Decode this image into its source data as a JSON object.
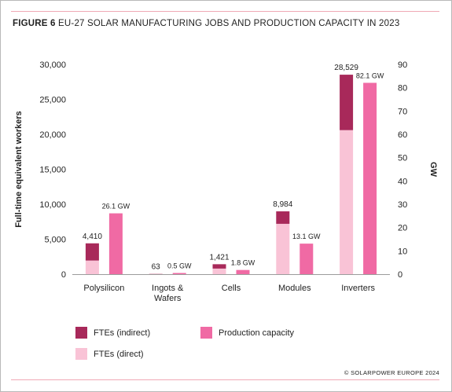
{
  "figure": {
    "label": "FIGURE 6",
    "title": "EU-27 SOLAR MANUFACTURING JOBS AND PRODUCTION CAPACITY IN 2023",
    "copyright": "© SOLARPOWER EUROPE 2024"
  },
  "colors": {
    "fte_indirect": "#a8295a",
    "fte_direct": "#f9c3d6",
    "capacity": "#f06aa4",
    "axis": "#222222",
    "rule": "#f0a9b5"
  },
  "chart_data": {
    "type": "bar",
    "categories": [
      "Polysilicon",
      "Ingots &\nWafers",
      "Cells",
      "Modules",
      "Inverters"
    ],
    "left_axis": {
      "label": "Full-time equivalent workers",
      "range": [
        0,
        30000
      ],
      "ticks": [
        "0",
        "5,000",
        "10,000",
        "15,000",
        "20,000",
        "25,000",
        "30,000"
      ]
    },
    "right_axis": {
      "label": "GW",
      "range": [
        0,
        90
      ],
      "ticks": [
        "0",
        "10",
        "20",
        "30",
        "40",
        "50",
        "60",
        "70",
        "80",
        "90"
      ]
    },
    "series": [
      {
        "name": "FTEs (direct)",
        "axis": "left",
        "stack": "fte",
        "values": [
          1950,
          40,
          800,
          7200,
          20600
        ]
      },
      {
        "name": "FTEs (indirect)",
        "axis": "left",
        "stack": "fte",
        "values": [
          2460,
          23,
          621,
          1784,
          7929
        ]
      },
      {
        "name": "Production capacity",
        "axis": "right",
        "values": [
          26.1,
          0.5,
          1.8,
          13.1,
          82.1
        ]
      }
    ],
    "fte_totals": [
      "4,410",
      "63",
      "1,421",
      "8,984",
      "28,529"
    ],
    "capacity_labels": [
      "26.1 GW",
      "0.5 GW",
      "1.8 GW",
      "13.1 GW",
      "82.1 GW"
    ],
    "legend": [
      {
        "name": "FTEs (indirect)",
        "color_key": "fte_indirect"
      },
      {
        "name": "Production capacity",
        "color_key": "capacity"
      },
      {
        "name": "FTEs (direct)",
        "color_key": "fte_direct"
      }
    ],
    "grid": false,
    "legend_position": "bottom-left"
  }
}
